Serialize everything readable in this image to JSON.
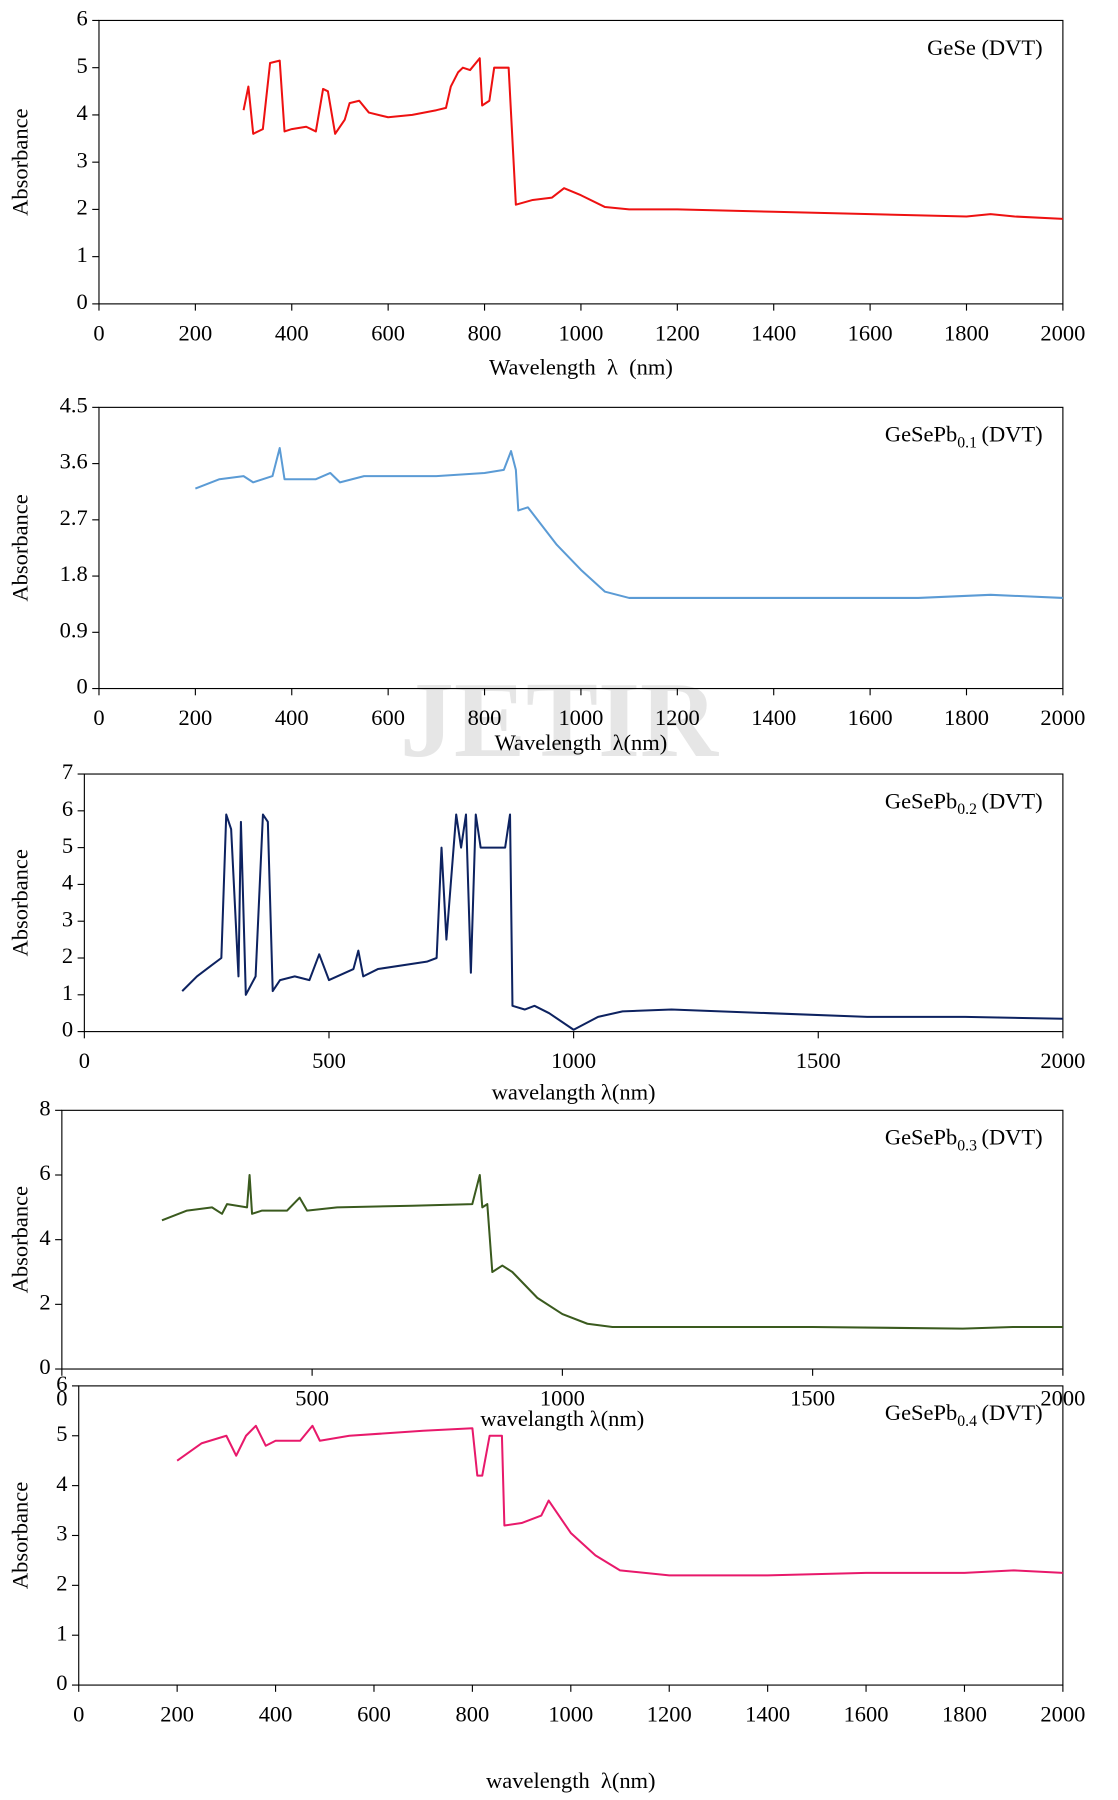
{
  "watermark": "JETIR",
  "chart_data": [
    {
      "type": "line",
      "title": "GeSe (DVT)",
      "xlabel": "Wavelength  λ  (nm)",
      "ylabel": "Absorbance",
      "xlim": [
        0,
        2000
      ],
      "ylim": [
        0,
        6
      ],
      "xticks": [
        0,
        200,
        400,
        600,
        800,
        1000,
        1200,
        1400,
        1600,
        1800,
        2000
      ],
      "yticks": [
        0,
        1,
        2,
        3,
        4,
        5,
        6
      ],
      "series": [
        {
          "color": "#ee1111",
          "x": [
            300,
            310,
            320,
            340,
            355,
            375,
            385,
            400,
            430,
            450,
            465,
            475,
            490,
            510,
            520,
            540,
            560,
            600,
            650,
            700,
            720,
            730,
            745,
            755,
            770,
            790,
            795,
            810,
            820,
            850,
            865,
            900,
            940,
            965,
            1000,
            1050,
            1100,
            1200,
            1400,
            1600,
            1800,
            1850,
            1900,
            2000
          ],
          "values": [
            4.1,
            4.6,
            3.6,
            3.7,
            5.1,
            5.15,
            3.65,
            3.7,
            3.75,
            3.65,
            4.55,
            4.5,
            3.6,
            3.9,
            4.25,
            4.3,
            4.05,
            3.95,
            4.0,
            4.1,
            4.15,
            4.6,
            4.9,
            5.0,
            4.95,
            5.2,
            4.2,
            4.3,
            5.0,
            5.0,
            2.1,
            2.2,
            2.25,
            2.45,
            2.3,
            2.05,
            2.0,
            2.0,
            1.95,
            1.9,
            1.85,
            1.9,
            1.85,
            1.8
          ]
        }
      ]
    },
    {
      "type": "line",
      "title": {
        "main": "GeSePb",
        "subscript": "0.1",
        "tail": "(DVT)"
      },
      "xlabel": "Wavelength  λ(nm)",
      "ylabel": "Absorbance",
      "xlim": [
        0,
        2000
      ],
      "ylim": [
        0,
        4.5
      ],
      "xticks": [
        0,
        200,
        400,
        600,
        800,
        1000,
        1200,
        1400,
        1600,
        1800,
        2000
      ],
      "yticks": [
        0,
        0.9,
        1.8,
        2.7,
        3.6,
        4.5
      ],
      "series": [
        {
          "color": "#5b9bd5",
          "x": [
            200,
            250,
            300,
            320,
            360,
            375,
            385,
            450,
            480,
            500,
            550,
            700,
            800,
            840,
            855,
            865,
            870,
            890,
            920,
            950,
            1000,
            1050,
            1100,
            1300,
            1500,
            1700,
            1850,
            2000
          ],
          "values": [
            3.2,
            3.35,
            3.4,
            3.3,
            3.4,
            3.85,
            3.35,
            3.35,
            3.45,
            3.3,
            3.4,
            3.4,
            3.45,
            3.5,
            3.8,
            3.5,
            2.85,
            2.9,
            2.6,
            2.3,
            1.9,
            1.55,
            1.45,
            1.45,
            1.45,
            1.45,
            1.5,
            1.45
          ]
        }
      ]
    },
    {
      "type": "line",
      "title": {
        "main": "GeSePb",
        "subscript": "0.2",
        "tail": "(DVT)"
      },
      "xlabel": "wavelangth λ(nm)",
      "ylabel": "Absorbance",
      "xlim": [
        0,
        2000
      ],
      "ylim": [
        0,
        7
      ],
      "xticks": [
        0,
        500,
        1000,
        1500,
        2000
      ],
      "yticks": [
        0,
        1,
        2,
        3,
        4,
        5,
        6,
        7
      ],
      "series": [
        {
          "color": "#0d2260",
          "x": [
            200,
            230,
            260,
            280,
            290,
            300,
            315,
            320,
            330,
            350,
            365,
            375,
            385,
            400,
            430,
            460,
            480,
            500,
            550,
            560,
            570,
            600,
            700,
            720,
            730,
            740,
            760,
            770,
            780,
            790,
            800,
            810,
            860,
            870,
            875,
            900,
            920,
            950,
            1000,
            1050,
            1100,
            1200,
            1400,
            1600,
            1800,
            2000
          ],
          "values": [
            1.1,
            1.5,
            1.8,
            2.0,
            5.9,
            5.5,
            1.5,
            5.7,
            1.0,
            1.5,
            5.9,
            5.7,
            1.1,
            1.4,
            1.5,
            1.4,
            2.1,
            1.4,
            1.7,
            2.2,
            1.5,
            1.7,
            1.9,
            2.0,
            5.0,
            2.5,
            5.9,
            5.0,
            5.9,
            1.6,
            5.9,
            5.0,
            5.0,
            5.9,
            0.7,
            0.6,
            0.7,
            0.5,
            0.05,
            0.4,
            0.55,
            0.6,
            0.5,
            0.4,
            0.4,
            0.35
          ]
        }
      ]
    },
    {
      "type": "line",
      "title": {
        "main": "GeSePb",
        "subscript": "0.3",
        "tail": "(DVT)"
      },
      "xlabel": "wavelangth λ(nm)",
      "ylabel": "Absorbance",
      "xlim": [
        0,
        2000
      ],
      "ylim": [
        0,
        8
      ],
      "xticks": [
        0,
        500,
        1000,
        1500,
        2000
      ],
      "yticks": [
        0,
        2,
        4,
        6,
        8
      ],
      "series": [
        {
          "color": "#3a5a1e",
          "x": [
            200,
            250,
            300,
            320,
            330,
            370,
            375,
            380,
            400,
            450,
            475,
            490,
            550,
            700,
            820,
            835,
            840,
            850,
            860,
            880,
            900,
            950,
            1000,
            1050,
            1100,
            1300,
            1500,
            1800,
            1900,
            2000
          ],
          "values": [
            4.6,
            4.9,
            5.0,
            4.8,
            5.1,
            5.0,
            6.0,
            4.8,
            4.9,
            4.9,
            5.3,
            4.9,
            5.0,
            5.05,
            5.1,
            6.0,
            5.0,
            5.1,
            3.0,
            3.2,
            3.0,
            2.2,
            1.7,
            1.4,
            1.3,
            1.3,
            1.3,
            1.25,
            1.3,
            1.3
          ]
        }
      ]
    },
    {
      "type": "line",
      "title": {
        "main": "GeSePb",
        "subscript": "0.4",
        "tail": "(DVT)"
      },
      "xlabel": "wavelength  λ(nm)",
      "ylabel": "Absorbance",
      "xlim": [
        0,
        2000
      ],
      "ylim": [
        0,
        6
      ],
      "xticks": [
        0,
        200,
        400,
        600,
        800,
        1000,
        1200,
        1400,
        1600,
        1800,
        2000
      ],
      "yticks": [
        0,
        1,
        2,
        3,
        4,
        5,
        6
      ],
      "series": [
        {
          "color": "#e8196b",
          "x": [
            200,
            250,
            300,
            320,
            340,
            360,
            380,
            400,
            450,
            475,
            490,
            550,
            700,
            800,
            810,
            820,
            835,
            860,
            865,
            900,
            940,
            955,
            1000,
            1050,
            1100,
            1200,
            1400,
            1600,
            1800,
            1900,
            2000
          ],
          "values": [
            4.5,
            4.85,
            5.0,
            4.6,
            5.0,
            5.2,
            4.8,
            4.9,
            4.9,
            5.2,
            4.9,
            5.0,
            5.1,
            5.15,
            4.2,
            4.2,
            5.0,
            5.0,
            3.2,
            3.25,
            3.4,
            3.7,
            3.05,
            2.6,
            2.3,
            2.2,
            2.2,
            2.25,
            2.25,
            2.3,
            2.25
          ]
        }
      ]
    }
  ]
}
